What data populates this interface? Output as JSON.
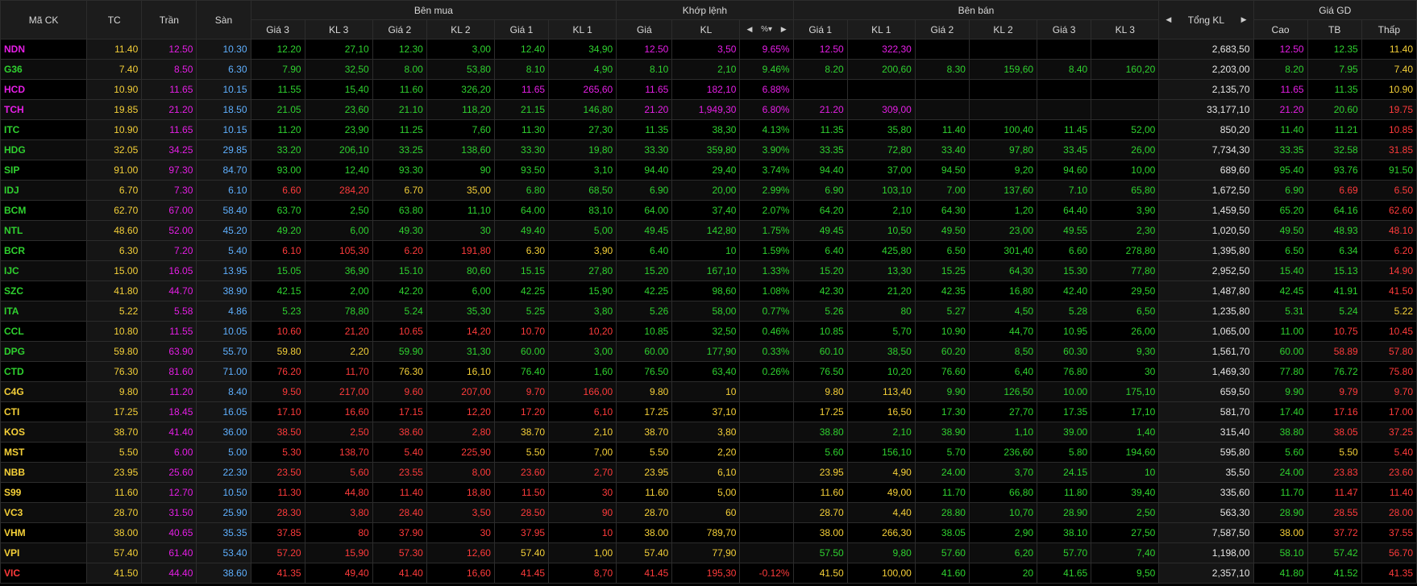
{
  "colors": {
    "up": "#2fd12f",
    "down": "#ff3b3b",
    "ref": "#f5d038",
    "ceil": "#e61ee6",
    "floor": "#5fb0ff",
    "header_text": "#d8d8d8",
    "total_text": "#e6e6e6"
  },
  "headers": {
    "symbol": "Mã CK",
    "ref": "TC",
    "ceil": "Trần",
    "floor": "Sàn",
    "buy_group": "Bên mua",
    "match_group": "Khớp lệnh",
    "sell_group": "Bên bán",
    "total_vol": "Tổng KL",
    "price_group": "Giá GD",
    "buy_cols": [
      "Giá 3",
      "KL 3",
      "Giá 2",
      "KL 2",
      "Giá 1",
      "KL 1"
    ],
    "match_cols": [
      "Giá",
      "KL"
    ],
    "match_pct_icon": "sort-percent-icon",
    "sell_cols": [
      "Giá 1",
      "KL 1",
      "Giá 2",
      "KL 2",
      "Giá 3",
      "KL 3"
    ],
    "price_cols": [
      "Cao",
      "TB",
      "Thấp"
    ],
    "arrow_left": "◀",
    "arrow_right": "▶"
  },
  "rows": [
    {
      "sym": "NDN",
      "tc": "11.40",
      "ce": "12.50",
      "fl": "10.30",
      "b3p": "12.20",
      "b3v": "27,10",
      "b2p": "12.30",
      "b2v": "3,00",
      "b1p": "12.40",
      "b1v": "34,90",
      "mp": "12.50",
      "mv": "3,50",
      "pct": "9.65%",
      "s1p": "12.50",
      "s1v": "322,30",
      "s2p": "",
      "s2v": "",
      "s3p": "",
      "s3v": "",
      "tot": "2,683,50",
      "hi": "12.50",
      "avg": "12.35",
      "lo": "11.40"
    },
    {
      "sym": "G36",
      "tc": "7.40",
      "ce": "8.50",
      "fl": "6.30",
      "b3p": "7.90",
      "b3v": "32,50",
      "b2p": "8.00",
      "b2v": "53,80",
      "b1p": "8.10",
      "b1v": "4,90",
      "mp": "8.10",
      "mv": "2,10",
      "pct": "9.46%",
      "s1p": "8.20",
      "s1v": "200,60",
      "s2p": "8.30",
      "s2v": "159,60",
      "s3p": "8.40",
      "s3v": "160,20",
      "tot": "2,203,00",
      "hi": "8.20",
      "avg": "7.95",
      "lo": "7.40"
    },
    {
      "sym": "HCD",
      "tc": "10.90",
      "ce": "11.65",
      "fl": "10.15",
      "b3p": "11.55",
      "b3v": "15,40",
      "b2p": "11.60",
      "b2v": "326,20",
      "b1p": "11.65",
      "b1v": "265,60",
      "mp": "11.65",
      "mv": "182,10",
      "pct": "6.88%",
      "s1p": "",
      "s1v": "",
      "s2p": "",
      "s2v": "",
      "s3p": "",
      "s3v": "",
      "tot": "2,135,70",
      "hi": "11.65",
      "avg": "11.35",
      "lo": "10.90"
    },
    {
      "sym": "TCH",
      "tc": "19.85",
      "ce": "21.20",
      "fl": "18.50",
      "b3p": "21.05",
      "b3v": "23,60",
      "b2p": "21.10",
      "b2v": "118,20",
      "b1p": "21.15",
      "b1v": "146,80",
      "mp": "21.20",
      "mv": "1,949,30",
      "pct": "6.80%",
      "s1p": "21.20",
      "s1v": "309,00",
      "s2p": "",
      "s2v": "",
      "s3p": "",
      "s3v": "",
      "tot": "33,177,10",
      "hi": "21.20",
      "avg": "20.60",
      "lo": "19.75"
    },
    {
      "sym": "ITC",
      "tc": "10.90",
      "ce": "11.65",
      "fl": "10.15",
      "b3p": "11.20",
      "b3v": "23,90",
      "b2p": "11.25",
      "b2v": "7,60",
      "b1p": "11.30",
      "b1v": "27,30",
      "mp": "11.35",
      "mv": "38,30",
      "pct": "4.13%",
      "s1p": "11.35",
      "s1v": "35,80",
      "s2p": "11.40",
      "s2v": "100,40",
      "s3p": "11.45",
      "s3v": "52,00",
      "tot": "850,20",
      "hi": "11.40",
      "avg": "11.21",
      "lo": "10.85"
    },
    {
      "sym": "HDG",
      "tc": "32.05",
      "ce": "34.25",
      "fl": "29.85",
      "b3p": "33.20",
      "b3v": "206,10",
      "b2p": "33.25",
      "b2v": "138,60",
      "b1p": "33.30",
      "b1v": "19,80",
      "mp": "33.30",
      "mv": "359,80",
      "pct": "3.90%",
      "s1p": "33.35",
      "s1v": "72,80",
      "s2p": "33.40",
      "s2v": "97,80",
      "s3p": "33.45",
      "s3v": "26,00",
      "tot": "7,734,30",
      "hi": "33.35",
      "avg": "32.58",
      "lo": "31.85"
    },
    {
      "sym": "SIP",
      "tc": "91.00",
      "ce": "97.30",
      "fl": "84.70",
      "b3p": "93.00",
      "b3v": "12,40",
      "b2p": "93.30",
      "b2v": "90",
      "b1p": "93.50",
      "b1v": "3,10",
      "mp": "94.40",
      "mv": "29,40",
      "pct": "3.74%",
      "s1p": "94.40",
      "s1v": "37,00",
      "s2p": "94.50",
      "s2v": "9,20",
      "s3p": "94.60",
      "s3v": "10,00",
      "tot": "689,60",
      "hi": "95.40",
      "avg": "93.76",
      "lo": "91.50"
    },
    {
      "sym": "IDJ",
      "tc": "6.70",
      "ce": "7.30",
      "fl": "6.10",
      "b3p": "6.60",
      "b3v": "284,20",
      "b2p": "6.70",
      "b2v": "35,00",
      "b1p": "6.80",
      "b1v": "68,50",
      "mp": "6.90",
      "mv": "20,00",
      "pct": "2.99%",
      "s1p": "6.90",
      "s1v": "103,10",
      "s2p": "7.00",
      "s2v": "137,60",
      "s3p": "7.10",
      "s3v": "65,80",
      "tot": "1,672,50",
      "hi": "6.90",
      "avg": "6.69",
      "lo": "6.50"
    },
    {
      "sym": "BCM",
      "tc": "62.70",
      "ce": "67.00",
      "fl": "58.40",
      "b3p": "63.70",
      "b3v": "2,50",
      "b2p": "63.80",
      "b2v": "11,10",
      "b1p": "64.00",
      "b1v": "83,10",
      "mp": "64.00",
      "mv": "37,40",
      "pct": "2.07%",
      "s1p": "64.20",
      "s1v": "2,10",
      "s2p": "64.30",
      "s2v": "1,20",
      "s3p": "64.40",
      "s3v": "3,90",
      "tot": "1,459,50",
      "hi": "65.20",
      "avg": "64.16",
      "lo": "62.60"
    },
    {
      "sym": "NTL",
      "tc": "48.60",
      "ce": "52.00",
      "fl": "45.20",
      "b3p": "49.20",
      "b3v": "6,00",
      "b2p": "49.30",
      "b2v": "30",
      "b1p": "49.40",
      "b1v": "5,00",
      "mp": "49.45",
      "mv": "142,80",
      "pct": "1.75%",
      "s1p": "49.45",
      "s1v": "10,50",
      "s2p": "49.50",
      "s2v": "23,00",
      "s3p": "49.55",
      "s3v": "2,30",
      "tot": "1,020,50",
      "hi": "49.50",
      "avg": "48.93",
      "lo": "48.10"
    },
    {
      "sym": "BCR",
      "tc": "6.30",
      "ce": "7.20",
      "fl": "5.40",
      "b3p": "6.10",
      "b3v": "105,30",
      "b2p": "6.20",
      "b2v": "191,80",
      "b1p": "6.30",
      "b1v": "3,90",
      "mp": "6.40",
      "mv": "10",
      "pct": "1.59%",
      "s1p": "6.40",
      "s1v": "425,80",
      "s2p": "6.50",
      "s2v": "301,40",
      "s3p": "6.60",
      "s3v": "278,80",
      "tot": "1,395,80",
      "hi": "6.50",
      "avg": "6.34",
      "lo": "6.20"
    },
    {
      "sym": "IJC",
      "tc": "15.00",
      "ce": "16.05",
      "fl": "13.95",
      "b3p": "15.05",
      "b3v": "36,90",
      "b2p": "15.10",
      "b2v": "80,60",
      "b1p": "15.15",
      "b1v": "27,80",
      "mp": "15.20",
      "mv": "167,10",
      "pct": "1.33%",
      "s1p": "15.20",
      "s1v": "13,30",
      "s2p": "15.25",
      "s2v": "64,30",
      "s3p": "15.30",
      "s3v": "77,80",
      "tot": "2,952,50",
      "hi": "15.40",
      "avg": "15.13",
      "lo": "14.90"
    },
    {
      "sym": "SZC",
      "tc": "41.80",
      "ce": "44.70",
      "fl": "38.90",
      "b3p": "42.15",
      "b3v": "2,00",
      "b2p": "42.20",
      "b2v": "6,00",
      "b1p": "42.25",
      "b1v": "15,90",
      "mp": "42.25",
      "mv": "98,60",
      "pct": "1.08%",
      "s1p": "42.30",
      "s1v": "21,20",
      "s2p": "42.35",
      "s2v": "16,80",
      "s3p": "42.40",
      "s3v": "29,50",
      "tot": "1,487,80",
      "hi": "42.45",
      "avg": "41.91",
      "lo": "41.50"
    },
    {
      "sym": "ITA",
      "tc": "5.22",
      "ce": "5.58",
      "fl": "4.86",
      "b3p": "5.23",
      "b3v": "78,80",
      "b2p": "5.24",
      "b2v": "35,30",
      "b1p": "5.25",
      "b1v": "3,80",
      "mp": "5.26",
      "mv": "58,00",
      "pct": "0.77%",
      "s1p": "5.26",
      "s1v": "80",
      "s2p": "5.27",
      "s2v": "4,50",
      "s3p": "5.28",
      "s3v": "6,50",
      "tot": "1,235,80",
      "hi": "5.31",
      "avg": "5.24",
      "lo": "5.22"
    },
    {
      "sym": "CCL",
      "tc": "10.80",
      "ce": "11.55",
      "fl": "10.05",
      "b3p": "10.60",
      "b3v": "21,20",
      "b2p": "10.65",
      "b2v": "14,20",
      "b1p": "10.70",
      "b1v": "10,20",
      "mp": "10.85",
      "mv": "32,50",
      "pct": "0.46%",
      "s1p": "10.85",
      "s1v": "5,70",
      "s2p": "10.90",
      "s2v": "44,70",
      "s3p": "10.95",
      "s3v": "26,00",
      "tot": "1,065,00",
      "hi": "11.00",
      "avg": "10.75",
      "lo": "10.45"
    },
    {
      "sym": "DPG",
      "tc": "59.80",
      "ce": "63.90",
      "fl": "55.70",
      "b3p": "59.80",
      "b3v": "2,20",
      "b2p": "59.90",
      "b2v": "31,30",
      "b1p": "60.00",
      "b1v": "3,00",
      "mp": "60.00",
      "mv": "177,90",
      "pct": "0.33%",
      "s1p": "60.10",
      "s1v": "38,50",
      "s2p": "60.20",
      "s2v": "8,50",
      "s3p": "60.30",
      "s3v": "9,30",
      "tot": "1,561,70",
      "hi": "60.00",
      "avg": "58.89",
      "lo": "57.80"
    },
    {
      "sym": "CTD",
      "tc": "76.30",
      "ce": "81.60",
      "fl": "71.00",
      "b3p": "76.20",
      "b3v": "11,70",
      "b2p": "76.30",
      "b2v": "16,10",
      "b1p": "76.40",
      "b1v": "1,60",
      "mp": "76.50",
      "mv": "63,40",
      "pct": "0.26%",
      "s1p": "76.50",
      "s1v": "10,20",
      "s2p": "76.60",
      "s2v": "6,40",
      "s3p": "76.80",
      "s3v": "30",
      "tot": "1,469,30",
      "hi": "77.80",
      "avg": "76.72",
      "lo": "75.80"
    },
    {
      "sym": "C4G",
      "tc": "9.80",
      "ce": "11.20",
      "fl": "8.40",
      "b3p": "9.50",
      "b3v": "217,00",
      "b2p": "9.60",
      "b2v": "207,00",
      "b1p": "9.70",
      "b1v": "166,00",
      "mp": "9.80",
      "mv": "10",
      "pct": "",
      "s1p": "9.80",
      "s1v": "113,40",
      "s2p": "9.90",
      "s2v": "126,50",
      "s3p": "10.00",
      "s3v": "175,10",
      "tot": "659,50",
      "hi": "9.90",
      "avg": "9.79",
      "lo": "9.70"
    },
    {
      "sym": "CTI",
      "tc": "17.25",
      "ce": "18.45",
      "fl": "16.05",
      "b3p": "17.10",
      "b3v": "16,60",
      "b2p": "17.15",
      "b2v": "12,20",
      "b1p": "17.20",
      "b1v": "6,10",
      "mp": "17.25",
      "mv": "37,10",
      "pct": "",
      "s1p": "17.25",
      "s1v": "16,50",
      "s2p": "17.30",
      "s2v": "27,70",
      "s3p": "17.35",
      "s3v": "17,10",
      "tot": "581,70",
      "hi": "17.40",
      "avg": "17.16",
      "lo": "17.00"
    },
    {
      "sym": "KOS",
      "tc": "38.70",
      "ce": "41.40",
      "fl": "36.00",
      "b3p": "38.50",
      "b3v": "2,50",
      "b2p": "38.60",
      "b2v": "2,80",
      "b1p": "38.70",
      "b1v": "2,10",
      "mp": "38.70",
      "mv": "3,80",
      "pct": "",
      "s1p": "38.80",
      "s1v": "2,10",
      "s2p": "38.90",
      "s2v": "1,10",
      "s3p": "39.00",
      "s3v": "1,40",
      "tot": "315,40",
      "hi": "38.80",
      "avg": "38.05",
      "lo": "37.25"
    },
    {
      "sym": "MST",
      "tc": "5.50",
      "ce": "6.00",
      "fl": "5.00",
      "b3p": "5.30",
      "b3v": "138,70",
      "b2p": "5.40",
      "b2v": "225,90",
      "b1p": "5.50",
      "b1v": "7,00",
      "mp": "5.50",
      "mv": "2,20",
      "pct": "",
      "s1p": "5.60",
      "s1v": "156,10",
      "s2p": "5.70",
      "s2v": "236,60",
      "s3p": "5.80",
      "s3v": "194,60",
      "tot": "595,80",
      "hi": "5.60",
      "avg": "5.50",
      "lo": "5.40"
    },
    {
      "sym": "NBB",
      "tc": "23.95",
      "ce": "25.60",
      "fl": "22.30",
      "b3p": "23.50",
      "b3v": "5,60",
      "b2p": "23.55",
      "b2v": "8,00",
      "b1p": "23.60",
      "b1v": "2,70",
      "mp": "23.95",
      "mv": "6,10",
      "pct": "",
      "s1p": "23.95",
      "s1v": "4,90",
      "s2p": "24.00",
      "s2v": "3,70",
      "s3p": "24.15",
      "s3v": "10",
      "tot": "35,50",
      "hi": "24.00",
      "avg": "23.83",
      "lo": "23.60"
    },
    {
      "sym": "S99",
      "tc": "11.60",
      "ce": "12.70",
      "fl": "10.50",
      "b3p": "11.30",
      "b3v": "44,80",
      "b2p": "11.40",
      "b2v": "18,80",
      "b1p": "11.50",
      "b1v": "30",
      "mp": "11.60",
      "mv": "5,00",
      "pct": "",
      "s1p": "11.60",
      "s1v": "49,00",
      "s2p": "11.70",
      "s2v": "66,80",
      "s3p": "11.80",
      "s3v": "39,40",
      "tot": "335,60",
      "hi": "11.70",
      "avg": "11.47",
      "lo": "11.40"
    },
    {
      "sym": "VC3",
      "tc": "28.70",
      "ce": "31.50",
      "fl": "25.90",
      "b3p": "28.30",
      "b3v": "3,80",
      "b2p": "28.40",
      "b2v": "3,50",
      "b1p": "28.50",
      "b1v": "90",
      "mp": "28.70",
      "mv": "60",
      "pct": "",
      "s1p": "28.70",
      "s1v": "4,40",
      "s2p": "28.80",
      "s2v": "10,70",
      "s3p": "28.90",
      "s3v": "2,50",
      "tot": "563,30",
      "hi": "28.90",
      "avg": "28.55",
      "lo": "28.00"
    },
    {
      "sym": "VHM",
      "tc": "38.00",
      "ce": "40.65",
      "fl": "35.35",
      "b3p": "37.85",
      "b3v": "80",
      "b2p": "37.90",
      "b2v": "30",
      "b1p": "37.95",
      "b1v": "10",
      "mp": "38.00",
      "mv": "789,70",
      "pct": "",
      "s1p": "38.00",
      "s1v": "266,30",
      "s2p": "38.05",
      "s2v": "2,90",
      "s3p": "38.10",
      "s3v": "27,50",
      "tot": "7,587,50",
      "hi": "38.00",
      "avg": "37.72",
      "lo": "37.55"
    },
    {
      "sym": "VPI",
      "tc": "57.40",
      "ce": "61.40",
      "fl": "53.40",
      "b3p": "57.20",
      "b3v": "15,90",
      "b2p": "57.30",
      "b2v": "12,60",
      "b1p": "57.40",
      "b1v": "1,00",
      "mp": "57.40",
      "mv": "77,90",
      "pct": "",
      "s1p": "57.50",
      "s1v": "9,80",
      "s2p": "57.60",
      "s2v": "6,20",
      "s3p": "57.70",
      "s3v": "7,40",
      "tot": "1,198,00",
      "hi": "58.10",
      "avg": "57.42",
      "lo": "56.70"
    },
    {
      "sym": "VIC",
      "tc": "41.50",
      "ce": "44.40",
      "fl": "38.60",
      "b3p": "41.35",
      "b3v": "49,40",
      "b2p": "41.40",
      "b2v": "16,60",
      "b1p": "41.45",
      "b1v": "8,70",
      "mp": "41.45",
      "mv": "195,30",
      "pct": "-0.12%",
      "s1p": "41.50",
      "s1v": "100,00",
      "s2p": "41.60",
      "s2v": "20",
      "s3p": "41.65",
      "s3v": "9,50",
      "tot": "2,357,10",
      "hi": "41.80",
      "avg": "41.52",
      "lo": "41.35"
    }
  ]
}
